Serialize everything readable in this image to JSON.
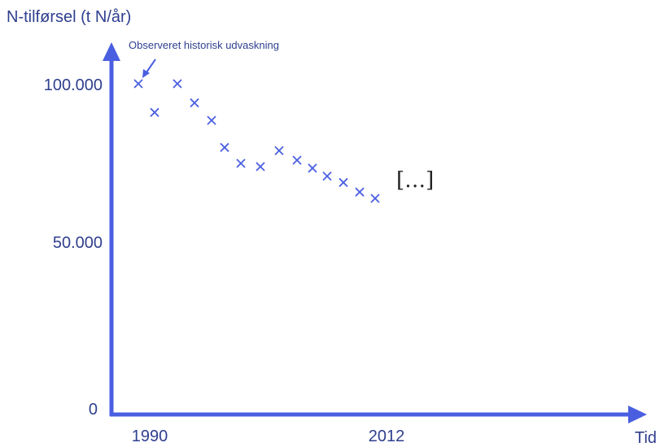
{
  "chart_data": {
    "type": "scatter",
    "title": "",
    "ylabel": "N-tilførsel (t N/år)",
    "xlabel": "Tid",
    "ylim": [
      0,
      100000
    ],
    "x_tick_labels": [
      "1990",
      "2012"
    ],
    "y_tick_labels": [
      "0",
      "50.000",
      "100.000"
    ],
    "annotation": "Observeret historisk udvaskning",
    "continuation_label": "[…]",
    "marker": "x",
    "color": "#4a5fe0",
    "series": [
      {
        "x": [
          1990,
          1991,
          1992,
          1993,
          1994,
          1995,
          1996,
          1997,
          1998,
          1999,
          2000,
          2001,
          2002,
          2003,
          2004,
          2005
        ],
        "values": [
          100500,
          91500,
          100500,
          94500,
          89000,
          80500,
          75500,
          74500,
          79500,
          76500,
          74000,
          71500,
          69500,
          66500,
          64500,
          63500
        ]
      }
    ]
  }
}
